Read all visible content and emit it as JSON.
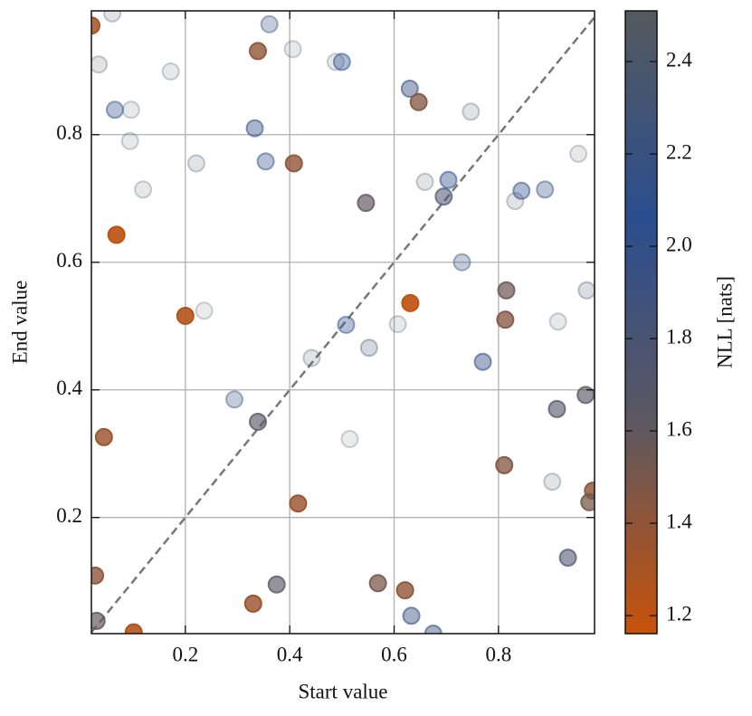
{
  "chart_data": {
    "type": "scatter",
    "x_label": "Start value",
    "y_label": "End value",
    "colorbar_label": "NLL [nats]",
    "xlim": [
      0.02,
      0.984
    ],
    "ylim": [
      0.018,
      0.994
    ],
    "xticks": [
      0.2,
      0.4,
      0.6,
      0.8
    ],
    "yticks": [
      0.2,
      0.4,
      0.6,
      0.8
    ],
    "clim": [
      1.161,
      2.51
    ],
    "cticks": [
      1.2,
      1.4,
      1.6,
      1.8,
      {
        "value": 2,
        "label": "2.0"
      },
      2.2,
      2.4
    ],
    "colormap": [
      "#c8520a",
      "#5e5860",
      "#2b4e8f",
      "#555a5e"
    ],
    "grid": true,
    "diagonal": true,
    "x": [
      0.02,
      0.06,
      0.034,
      0.065,
      0.096,
      0.094,
      0.119,
      0.172,
      0.221,
      0.068,
      0.2,
      0.236,
      0.044,
      0.294,
      0.339,
      0.361,
      0.339,
      0.333,
      0.354,
      0.408,
      0.406,
      0.488,
      0.5,
      0.63,
      0.647,
      0.747,
      0.546,
      0.659,
      0.695,
      0.704,
      0.73,
      0.631,
      0.508,
      0.607,
      0.552,
      0.442,
      0.515,
      0.77,
      0.815,
      0.813,
      0.832,
      0.844,
      0.889,
      0.953,
      0.969,
      0.914,
      0.967,
      0.912,
      0.811,
      0.903,
      0.981,
      0.974,
      0.933,
      0.416,
      0.027,
      0.375,
      0.33,
      0.569,
      0.621,
      0.633,
      0.675,
      0.03,
      0.101
    ],
    "y": [
      0.971,
      0.99,
      0.91,
      0.839,
      0.839,
      0.79,
      0.714,
      0.899,
      0.755,
      0.643,
      0.516,
      0.524,
      0.326,
      0.385,
      0.35,
      0.973,
      0.931,
      0.81,
      0.758,
      0.755,
      0.934,
      0.914,
      0.914,
      0.872,
      0.851,
      0.836,
      0.693,
      0.726,
      0.703,
      0.729,
      0.6,
      0.536,
      0.502,
      0.503,
      0.466,
      0.45,
      0.323,
      0.444,
      0.556,
      0.51,
      0.696,
      0.712,
      0.714,
      0.77,
      0.556,
      0.507,
      0.392,
      0.37,
      0.282,
      0.256,
      0.242,
      0.224,
      0.137,
      0.222,
      0.109,
      0.095,
      0.065,
      0.097,
      0.086,
      0.046,
      0.018,
      0.038,
      0.02
    ],
    "c": [
      1.3,
      2.4,
      2.4,
      2.1,
      2.45,
      2.45,
      2.45,
      2.45,
      2.4,
      1.2,
      1.25,
      2.5,
      1.35,
      2.2,
      1.65,
      2.2,
      1.4,
      2.0,
      2.1,
      1.4,
      2.45,
      2.45,
      2.05,
      1.95,
      1.45,
      2.4,
      1.6,
      2.4,
      1.8,
      2.0,
      2.2,
      1.2,
      2.1,
      2.45,
      2.3,
      2.4,
      2.5,
      1.95,
      1.55,
      1.45,
      2.4,
      2.05,
      2.15,
      2.45,
      2.35,
      2.45,
      1.65,
      1.7,
      1.45,
      2.4,
      1.4,
      1.5,
      1.75,
      1.35,
      1.4,
      1.65,
      1.35,
      1.5,
      1.4,
      1.95,
      1.95,
      1.6,
      1.25
    ]
  }
}
